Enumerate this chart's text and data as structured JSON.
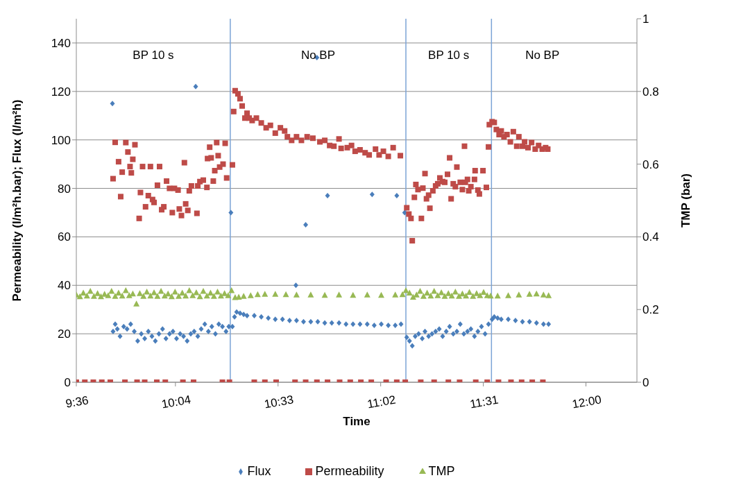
{
  "chart_data": {
    "type": "scatter",
    "xlabel": "Time",
    "ylabel": "Permeability (l/m²h.bar); Flux (l/m²h)",
    "y2label": "TMP (bar)",
    "xlim": [
      9.6,
      12.24
    ],
    "xticks": [
      {
        "value": 9.6,
        "label": "9:36"
      },
      {
        "value": 10.0667,
        "label": "10:04"
      },
      {
        "value": 10.55,
        "label": "10:33"
      },
      {
        "value": 11.0333,
        "label": "11:02"
      },
      {
        "value": 11.5167,
        "label": "11:31"
      },
      {
        "value": 12.0,
        "label": "12:00"
      }
    ],
    "ylim": [
      0,
      150
    ],
    "yticks": [
      0,
      20,
      40,
      60,
      80,
      100,
      120,
      140
    ],
    "y2lim": [
      0,
      1
    ],
    "y2ticks": [
      0,
      0.2,
      0.4,
      0.6,
      0.8,
      1
    ],
    "grid": "y",
    "legend": "bottom",
    "ref_lines": [
      {
        "axis": "x",
        "value": 10.325,
        "color": "#7ba3d6"
      },
      {
        "axis": "x",
        "value": 11.152,
        "color": "#7ba3d6"
      },
      {
        "axis": "x",
        "value": 11.555,
        "color": "#7ba3d6"
      }
    ],
    "annotations": [
      "BP 10 s",
      "No BP",
      "BP 10 s",
      "No BP"
    ],
    "series": [
      {
        "name": "Flux",
        "color": "#4a7ebb",
        "marker": "diamond",
        "x": [
          9.77,
          9.773,
          9.783,
          9.793,
          9.806,
          9.823,
          9.839,
          9.856,
          9.873,
          9.889,
          9.906,
          9.922,
          9.939,
          9.956,
          9.972,
          9.989,
          10.006,
          10.022,
          10.039,
          10.055,
          10.072,
          10.089,
          10.105,
          10.122,
          10.139,
          10.155,
          10.162,
          10.172,
          10.188,
          10.205,
          10.222,
          10.238,
          10.255,
          10.271,
          10.288,
          10.305,
          10.318,
          10.328,
          10.335,
          10.345,
          10.355,
          10.371,
          10.388,
          10.404,
          10.438,
          10.471,
          10.504,
          10.537,
          10.571,
          10.604,
          10.634,
          10.637,
          10.67,
          10.68,
          10.704,
          10.733,
          10.737,
          10.77,
          10.783,
          10.803,
          10.837,
          10.87,
          10.903,
          10.936,
          10.97,
          10.993,
          11.003,
          11.036,
          11.069,
          11.102,
          11.109,
          11.129,
          11.146,
          11.156,
          11.169,
          11.182,
          11.196,
          11.212,
          11.229,
          11.242,
          11.259,
          11.275,
          11.292,
          11.309,
          11.325,
          11.342,
          11.358,
          11.375,
          11.392,
          11.408,
          11.425,
          11.442,
          11.458,
          11.475,
          11.491,
          11.508,
          11.525,
          11.541,
          11.558,
          11.568,
          11.584,
          11.601,
          11.634,
          11.668,
          11.701,
          11.734,
          11.767,
          11.8,
          11.824
        ],
        "values": [
          115,
          21,
          24,
          22,
          19,
          23,
          22,
          24,
          21,
          17,
          20,
          18,
          21,
          19,
          17,
          20,
          22,
          18,
          20,
          21,
          18,
          20,
          19,
          17,
          20,
          21,
          122,
          19,
          22,
          24,
          21,
          23,
          20,
          24,
          23,
          21,
          23,
          70,
          23,
          27,
          29,
          28.5,
          28,
          27.5,
          27.5,
          27,
          26.5,
          26,
          26,
          25.5,
          40,
          25.5,
          25,
          65,
          25,
          134,
          25,
          24.5,
          77,
          24.5,
          24.5,
          24,
          24,
          24,
          24,
          77.5,
          23.5,
          24,
          23.5,
          23.5,
          77,
          24,
          70,
          18.5,
          17,
          15,
          19,
          20,
          18,
          21,
          19,
          20,
          21,
          22,
          19,
          21,
          23,
          20,
          21,
          24,
          20,
          21,
          22,
          19,
          21,
          23,
          20,
          24,
          26,
          27,
          26.5,
          26,
          26,
          25.5,
          25,
          25,
          24.5,
          24,
          24
        ]
      },
      {
        "name": "Permeability",
        "color": "#be4b48",
        "marker": "square",
        "x": [
          9.6,
          9.64,
          9.68,
          9.72,
          9.76,
          9.773,
          9.783,
          9.799,
          9.809,
          9.816,
          9.829,
          9.833,
          9.843,
          9.853,
          9.859,
          9.866,
          9.876,
          9.886,
          9.896,
          9.902,
          9.912,
          9.922,
          9.926,
          9.939,
          9.949,
          9.959,
          9.966,
          9.979,
          9.982,
          9.992,
          10.002,
          10.012,
          10.019,
          10.025,
          10.039,
          10.052,
          10.062,
          10.079,
          10.085,
          10.095,
          10.102,
          10.109,
          10.115,
          10.125,
          10.132,
          10.142,
          10.152,
          10.168,
          10.172,
          10.182,
          10.198,
          10.215,
          10.218,
          10.228,
          10.235,
          10.245,
          10.252,
          10.261,
          10.268,
          10.275,
          10.288,
          10.291,
          10.301,
          10.308,
          10.321,
          10.335,
          10.341,
          10.348,
          10.361,
          10.371,
          10.381,
          10.394,
          10.404,
          10.414,
          10.428,
          10.438,
          10.448,
          10.471,
          10.488,
          10.494,
          10.514,
          10.537,
          10.541,
          10.561,
          10.581,
          10.594,
          10.614,
          10.63,
          10.637,
          10.66,
          10.68,
          10.687,
          10.714,
          10.733,
          10.747,
          10.77,
          10.783,
          10.793,
          10.813,
          10.837,
          10.84,
          10.847,
          10.876,
          10.89,
          10.896,
          10.913,
          10.936,
          10.94,
          10.96,
          10.979,
          10.989,
          11.009,
          11.026,
          11.046,
          11.059,
          11.069,
          11.092,
          11.109,
          11.126,
          11.149,
          11.156,
          11.166,
          11.176,
          11.182,
          11.192,
          11.199,
          11.209,
          11.222,
          11.225,
          11.232,
          11.242,
          11.249,
          11.259,
          11.265,
          11.279,
          11.285,
          11.292,
          11.302,
          11.312,
          11.325,
          11.335,
          11.348,
          11.352,
          11.358,
          11.365,
          11.375,
          11.385,
          11.392,
          11.405,
          11.408,
          11.418,
          11.428,
          11.432,
          11.442,
          11.448,
          11.458,
          11.475,
          11.478,
          11.481,
          11.491,
          11.498,
          11.515,
          11.531,
          11.535,
          11.541,
          11.545,
          11.558,
          11.568,
          11.578,
          11.588,
          11.591,
          11.601,
          11.614,
          11.628,
          11.644,
          11.647,
          11.658,
          11.674,
          11.684,
          11.697,
          11.701,
          11.711,
          11.727,
          11.744,
          11.747,
          11.761,
          11.777,
          11.794,
          11.797,
          11.81,
          11.82
        ],
        "values": [
          0,
          0,
          0,
          0,
          0,
          84,
          99,
          91,
          76.6,
          86.7,
          0,
          98.9,
          95,
          89,
          86.4,
          92,
          98,
          0,
          67.6,
          78.3,
          89,
          0,
          72.4,
          77,
          89,
          75.4,
          74.2,
          0,
          81.3,
          89,
          71.2,
          72.4,
          0,
          83,
          80,
          70,
          80,
          79.3,
          71.5,
          68.8,
          0,
          90.6,
          73.6,
          70.9,
          79,
          81,
          0,
          69.7,
          81,
          82.8,
          83.4,
          80.4,
          92.3,
          97,
          92.6,
          83,
          87.3,
          98.9,
          93.5,
          88.8,
          0,
          90,
          98.6,
          84.3,
          0,
          89.7,
          111.7,
          120.3,
          119,
          117,
          114,
          109,
          111,
          109,
          108,
          0,
          109,
          107,
          0,
          105,
          106,
          102.8,
          0,
          105,
          103.7,
          101.3,
          99.8,
          0,
          101.3,
          99.8,
          0,
          101.3,
          100.7,
          0,
          99.2,
          99.8,
          0,
          97.7,
          97.4,
          100.4,
          0,
          96.5,
          96.8,
          0,
          97.7,
          95.3,
          95.9,
          0,
          94.7,
          93.8,
          0,
          96.2,
          93.8,
          95.3,
          0,
          93.2,
          96.8,
          0,
          93.5,
          0,
          72,
          69.4,
          67.6,
          58.4,
          76.3,
          81.6,
          79.5,
          0,
          67.6,
          80.1,
          86.1,
          75.7,
          77.2,
          71.8,
          79,
          0,
          81,
          81.9,
          84.3,
          82.8,
          82.5,
          85.8,
          0,
          92.6,
          75.7,
          81.9,
          80.7,
          88.8,
          0,
          82.5,
          79.5,
          97.4,
          82.5,
          83.7,
          79,
          80.7,
          83.7,
          87.3,
          0,
          79.3,
          77.7,
          87.3,
          80.4,
          0,
          97.1,
          106.3,
          107.5,
          107.2,
          104.3,
          0,
          102.2,
          103.7,
          101.3,
          102.2,
          99.2,
          0,
          103.4,
          97.4,
          101.3,
          0,
          97.4,
          99.2,
          96.8,
          98.9,
          0,
          96.2,
          97.7,
          96.2,
          0,
          96.8,
          96.2
        ]
      },
      {
        "name": "TMP",
        "color": "#98b954",
        "marker": "triangle",
        "axis": "y2",
        "x": [
          9.6,
          9.617,
          9.633,
          9.65,
          9.666,
          9.683,
          9.7,
          9.716,
          9.733,
          9.75,
          9.766,
          9.783,
          9.799,
          9.816,
          9.833,
          9.849,
          9.866,
          9.883,
          9.899,
          9.916,
          9.932,
          9.949,
          9.966,
          9.982,
          9.999,
          10.016,
          10.032,
          10.049,
          10.065,
          10.082,
          10.099,
          10.115,
          10.132,
          10.148,
          10.165,
          10.182,
          10.198,
          10.215,
          10.232,
          10.248,
          10.265,
          10.281,
          10.298,
          10.315,
          10.331,
          10.348,
          10.365,
          10.388,
          10.421,
          10.454,
          10.488,
          10.537,
          10.587,
          10.637,
          10.704,
          10.77,
          10.837,
          10.903,
          10.97,
          11.036,
          11.102,
          11.136,
          11.152,
          11.169,
          11.186,
          11.202,
          11.219,
          11.235,
          11.252,
          11.269,
          11.285,
          11.302,
          11.319,
          11.335,
          11.352,
          11.368,
          11.385,
          11.402,
          11.418,
          11.435,
          11.451,
          11.468,
          11.485,
          11.501,
          11.518,
          11.535,
          11.551,
          11.584,
          11.634,
          11.684,
          11.734,
          11.767,
          11.8,
          11.824
        ],
        "values": [
          0.24,
          0.235,
          0.245,
          0.237,
          0.25,
          0.236,
          0.244,
          0.235,
          0.242,
          0.238,
          0.25,
          0.236,
          0.245,
          0.237,
          0.252,
          0.238,
          0.243,
          0.215,
          0.244,
          0.236,
          0.248,
          0.237,
          0.246,
          0.236,
          0.25,
          0.237,
          0.243,
          0.235,
          0.248,
          0.236,
          0.245,
          0.237,
          0.252,
          0.238,
          0.246,
          0.235,
          0.25,
          0.237,
          0.245,
          0.236,
          0.248,
          0.237,
          0.244,
          0.238,
          0.252,
          0.233,
          0.234,
          0.236,
          0.238,
          0.241,
          0.242,
          0.242,
          0.241,
          0.24,
          0.24,
          0.239,
          0.24,
          0.239,
          0.24,
          0.239,
          0.24,
          0.241,
          0.252,
          0.245,
          0.234,
          0.24,
          0.25,
          0.236,
          0.245,
          0.237,
          0.25,
          0.238,
          0.246,
          0.236,
          0.244,
          0.237,
          0.248,
          0.236,
          0.243,
          0.237,
          0.247,
          0.236,
          0.244,
          0.238,
          0.247,
          0.238,
          0.237,
          0.237,
          0.238,
          0.24,
          0.242,
          0.243,
          0.24,
          0.238
        ]
      }
    ]
  }
}
